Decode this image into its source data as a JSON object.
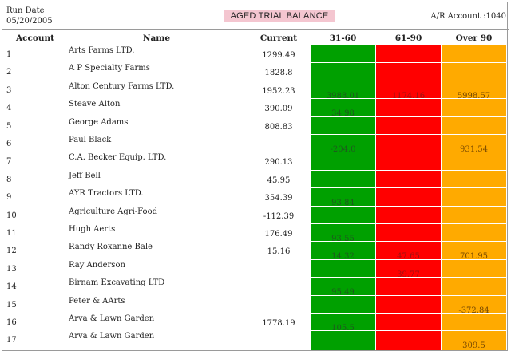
{
  "header": {
    "run_label": "Run Date",
    "run_date": "05/20/2005",
    "title": "AGED TRIAL BALANCE",
    "account_info": "A/R Account :1040"
  },
  "columns": {
    "account": "Account",
    "name": "Name",
    "current": "Current",
    "d31_60": "31-60",
    "d61_90": "61-90",
    "over90": "Over 90"
  },
  "colors": {
    "green": "#00a000",
    "red": "#ff0000",
    "orange": "#ffaa00",
    "title_bg": "#f4c6d0"
  },
  "rows": [
    {
      "account": "1",
      "name": "Arts Farms LTD.",
      "current": "1299.49",
      "d31_60": "",
      "d61_90": "",
      "over90": ""
    },
    {
      "account": "2",
      "name": "A P Specialty Farms",
      "current": "1828.8",
      "d31_60": "",
      "d61_90": "",
      "over90": ""
    },
    {
      "account": "3",
      "name": "Alton Century Farms LTD.",
      "current": "1952.23",
      "d31_60": "3988.01",
      "d61_90": "1174.16",
      "over90": "5998.57"
    },
    {
      "account": "4",
      "name": "Steave Alton",
      "current": "390.09",
      "d31_60": "34.98",
      "d61_90": "",
      "over90": ""
    },
    {
      "account": "5",
      "name": "George Adams",
      "current": "808.83",
      "d31_60": "",
      "d61_90": "",
      "over90": ""
    },
    {
      "account": "6",
      "name": "Paul Black",
      "current": "",
      "d31_60": "-204.0",
      "d61_90": "",
      "over90": "931.54"
    },
    {
      "account": "7",
      "name": "C.A. Becker Equip. LTD.",
      "current": "290.13",
      "d31_60": "",
      "d61_90": "",
      "over90": ""
    },
    {
      "account": "8",
      "name": "Jeff Bell",
      "current": "45.95",
      "d31_60": "",
      "d61_90": "",
      "over90": ""
    },
    {
      "account": "9",
      "name": "AYR Tractors LTD.",
      "current": "354.39",
      "d31_60": "93.84",
      "d61_90": "",
      "over90": ""
    },
    {
      "account": "10",
      "name": "Agriculture Agri-Food",
      "current": "-112.39",
      "d31_60": "",
      "d61_90": "",
      "over90": ""
    },
    {
      "account": "11",
      "name": "Hugh Aerts",
      "current": "176.49",
      "d31_60": "93.55",
      "d61_90": "",
      "over90": ""
    },
    {
      "account": "12",
      "name": "Randy Roxanne Bale",
      "current": "15.16",
      "d31_60": "14.32",
      "d61_90": "47.65",
      "over90": "701.95"
    },
    {
      "account": "13",
      "name": "Ray Anderson",
      "current": "",
      "d31_60": "",
      "d61_90": "39.77",
      "over90": ""
    },
    {
      "account": "14",
      "name": "Birnam Excavating LTD",
      "current": "",
      "d31_60": "95.49",
      "d61_90": "",
      "over90": ""
    },
    {
      "account": "15",
      "name": "Peter & AArts",
      "current": "",
      "d31_60": "",
      "d61_90": "",
      "over90": "-372.84"
    },
    {
      "account": "16",
      "name": "Arva & Lawn Garden",
      "current": "1778.19",
      "d31_60": "105.5",
      "d61_90": "",
      "over90": ""
    },
    {
      "account": "17",
      "name": "Arva & Lawn Garden",
      "current": "",
      "d31_60": "",
      "d61_90": "",
      "over90": "309.5"
    }
  ]
}
